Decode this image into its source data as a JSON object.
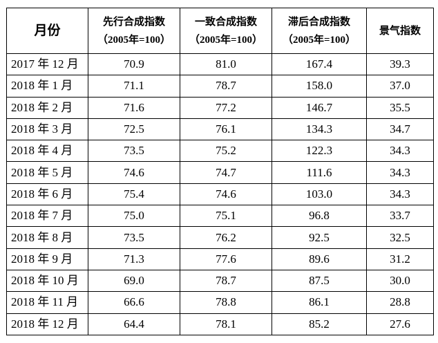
{
  "table": {
    "headers": [
      {
        "line1": "月份",
        "line2": ""
      },
      {
        "line1": "先行合成指数",
        "line2": "（2005年=100）"
      },
      {
        "line1": "一致合成指数",
        "line2": "（2005年=100）"
      },
      {
        "line1": "滞后合成指数",
        "line2": "（2005年=100）"
      },
      {
        "line1": "景气指数",
        "line2": ""
      }
    ],
    "rows": [
      [
        "2017 年 12 月",
        "70.9",
        "81.0",
        "167.4",
        "39.3"
      ],
      [
        "2018 年 1 月",
        "71.1",
        "78.7",
        "158.0",
        "37.0"
      ],
      [
        "2018 年 2 月",
        "71.6",
        "77.2",
        "146.7",
        "35.5"
      ],
      [
        "2018 年 3 月",
        "72.5",
        "76.1",
        "134.3",
        "34.7"
      ],
      [
        "2018 年 4 月",
        "73.5",
        "75.2",
        "122.3",
        "34.3"
      ],
      [
        "2018 年 5 月",
        "74.6",
        "74.7",
        "111.6",
        "34.3"
      ],
      [
        "2018 年 6 月",
        "75.4",
        "74.6",
        "103.0",
        "34.3"
      ],
      [
        "2018 年 7 月",
        "75.0",
        "75.1",
        "96.8",
        "33.7"
      ],
      [
        "2018 年 8 月",
        "73.5",
        "76.2",
        "92.5",
        "32.5"
      ],
      [
        "2018 年 9 月",
        "71.3",
        "77.6",
        "89.6",
        "31.2"
      ],
      [
        "2018 年 10 月",
        "69.0",
        "78.7",
        "87.5",
        "30.0"
      ],
      [
        "2018 年 11 月",
        "66.6",
        "78.8",
        "86.1",
        "28.8"
      ],
      [
        "2018 年 12 月",
        "64.4",
        "78.1",
        "85.2",
        "27.6"
      ]
    ]
  }
}
